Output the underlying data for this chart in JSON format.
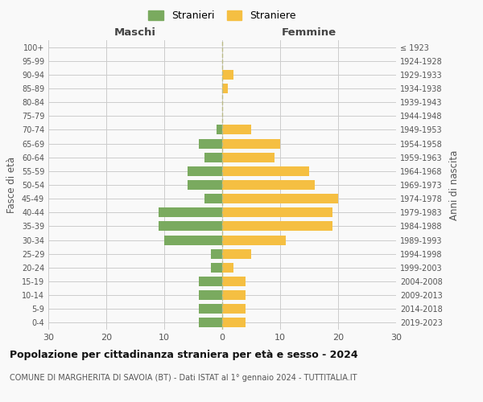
{
  "age_groups": [
    "100+",
    "95-99",
    "90-94",
    "85-89",
    "80-84",
    "75-79",
    "70-74",
    "65-69",
    "60-64",
    "55-59",
    "50-54",
    "45-49",
    "40-44",
    "35-39",
    "30-34",
    "25-29",
    "20-24",
    "15-19",
    "10-14",
    "5-9",
    "0-4"
  ],
  "birth_years": [
    "≤ 1923",
    "1924-1928",
    "1929-1933",
    "1934-1938",
    "1939-1943",
    "1944-1948",
    "1949-1953",
    "1954-1958",
    "1959-1963",
    "1964-1968",
    "1969-1973",
    "1974-1978",
    "1979-1983",
    "1984-1988",
    "1989-1993",
    "1994-1998",
    "1999-2003",
    "2004-2008",
    "2009-2013",
    "2014-2018",
    "2019-2023"
  ],
  "males": [
    0,
    0,
    0,
    0,
    0,
    0,
    1,
    4,
    3,
    6,
    6,
    3,
    11,
    11,
    10,
    2,
    2,
    4,
    4,
    4,
    4
  ],
  "females": [
    0,
    0,
    2,
    1,
    0,
    0,
    5,
    10,
    9,
    15,
    16,
    20,
    19,
    19,
    11,
    5,
    2,
    4,
    4,
    4,
    4
  ],
  "male_color": "#7aaa5f",
  "female_color": "#f5bf42",
  "background_color": "#f9f9f9",
  "grid_color": "#cccccc",
  "xlim": 30,
  "title": "Popolazione per cittadinanza straniera per età e sesso - 2024",
  "subtitle": "COMUNE DI MARGHERITA DI SAVOIA (BT) - Dati ISTAT al 1° gennaio 2024 - TUTTITALIA.IT",
  "ylabel_left": "Fasce di età",
  "ylabel_right": "Anni di nascita",
  "legend_male": "Stranieri",
  "legend_female": "Straniere",
  "header_left": "Maschi",
  "header_right": "Femmine"
}
